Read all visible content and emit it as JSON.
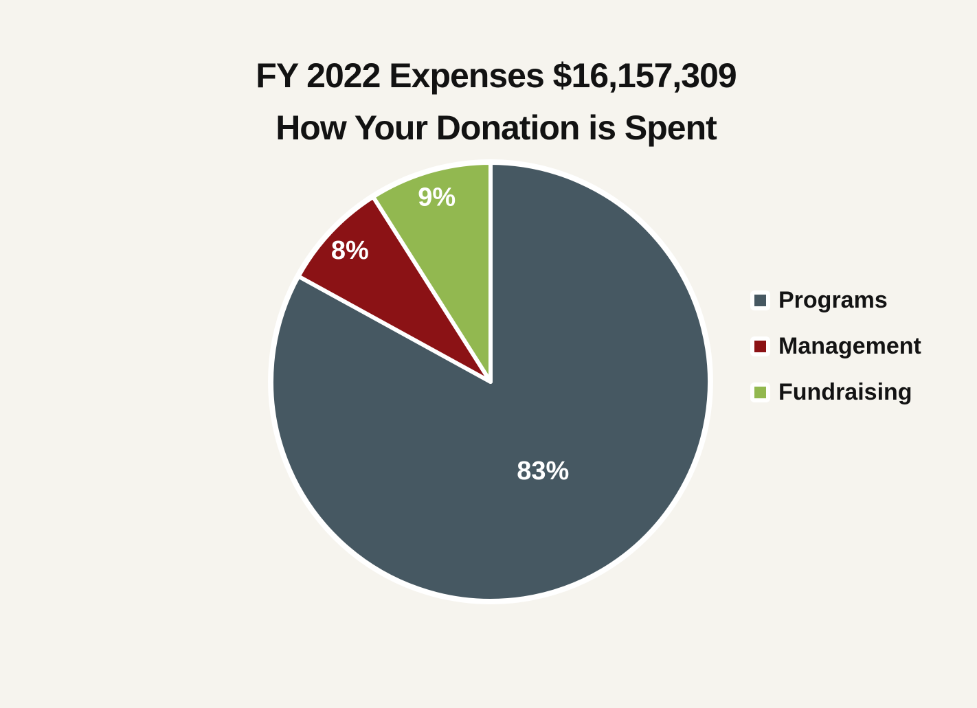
{
  "title": {
    "line1": "FY 2022 Expenses $16,157,309",
    "line2": "How Your Donation is Spent"
  },
  "chart_data": {
    "type": "pie",
    "title": "FY 2022 Expenses $16,157,309",
    "subtitle": "How Your Donation is Spent",
    "fiscal_year": "FY 2022",
    "total_expenses": "$16,157,309",
    "slices": [
      {
        "label": "Programs",
        "value": 83,
        "display": "83%",
        "color": "#465862",
        "label_r_frac": 0.47
      },
      {
        "label": "Management",
        "value": 8,
        "display": "8%",
        "color": "#8b1215",
        "label_r_frac": 0.88
      },
      {
        "label": "Fundraising",
        "value": 9,
        "display": "9%",
        "color": "#92b850",
        "label_r_frac": 0.88
      }
    ],
    "start_angle_deg": 0,
    "direction": "clockwise",
    "legend_position": "right",
    "slice_border_color": "#ffffff",
    "slice_label_color": "#ffffff",
    "background_color": "#f6f4ee",
    "title_color": "#121212"
  }
}
